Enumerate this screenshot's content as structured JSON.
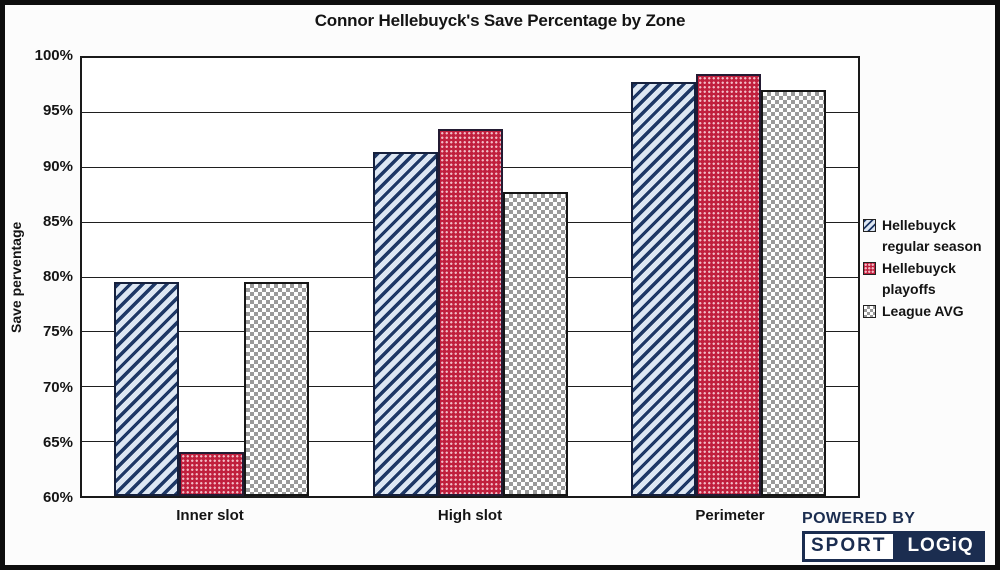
{
  "title": "Connor Hellebuyck's Save Percentage by Zone",
  "chart_data": {
    "type": "bar",
    "categories": [
      "Inner slot",
      "High slot",
      "Perimeter"
    ],
    "series": [
      {
        "name": "Hellebuyck regular season",
        "legend_lines": [
          "Hellebuyck",
          "regular season"
        ],
        "pattern": "diagonal-stripes",
        "stripe_color": "#1e3866",
        "stripe_bg": "#dde7f3",
        "values": [
          79.5,
          91.4,
          97.8
        ]
      },
      {
        "name": "Hellebuyck playoffs",
        "legend_lines": [
          "Hellebuyck",
          "playoffs"
        ],
        "pattern": "dots",
        "fill_color": "#c01f3d",
        "values": [
          64.0,
          93.5,
          98.5
        ]
      },
      {
        "name": "League AVG",
        "legend_lines": [
          "League AVG"
        ],
        "pattern": "checkerboard",
        "fill_color": "#9a9a9a",
        "values": [
          79.5,
          87.8,
          97.1
        ]
      }
    ],
    "xlabel": "",
    "ylabel": "Save perventage",
    "ylim": [
      60,
      100
    ],
    "ytick_step": 5,
    "ytick_suffix": "%",
    "grid": true,
    "legend_position": "right"
  },
  "footer": {
    "powered_by": "POWERED BY",
    "logo_left": "SPORT",
    "logo_right": "LOGiQ",
    "brand_navy": "#1b2d50"
  }
}
